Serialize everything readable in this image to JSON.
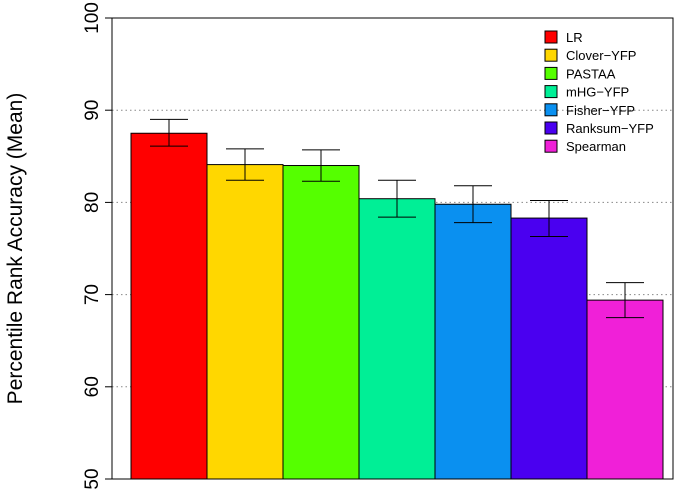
{
  "chart_data": {
    "type": "bar",
    "title": "",
    "xlabel": "",
    "ylabel": "Percentile Rank Accuracy (Mean)",
    "ylim": [
      50,
      100
    ],
    "yticks": [
      50,
      60,
      70,
      80,
      90,
      100
    ],
    "grid": "horizontal dotted",
    "legend_position": "top-right",
    "categories": [
      "LR",
      "Clover−YFP",
      "PASTAA",
      "mHG−YFP",
      "Fisher−YFP",
      "Ranksum−YFP",
      "Spearman"
    ],
    "values": [
      87.5,
      84.1,
      84.0,
      80.4,
      79.8,
      78.3,
      69.4
    ],
    "error_low": [
      86.1,
      82.4,
      82.3,
      78.4,
      77.8,
      76.3,
      67.5
    ],
    "error_high": [
      89.0,
      85.8,
      85.7,
      82.4,
      81.8,
      80.2,
      71.3
    ],
    "colors": [
      "#ff0000",
      "#ffd700",
      "#55ff00",
      "#00ef96",
      "#0a90f0",
      "#4a00f0",
      "#f020d8"
    ]
  }
}
